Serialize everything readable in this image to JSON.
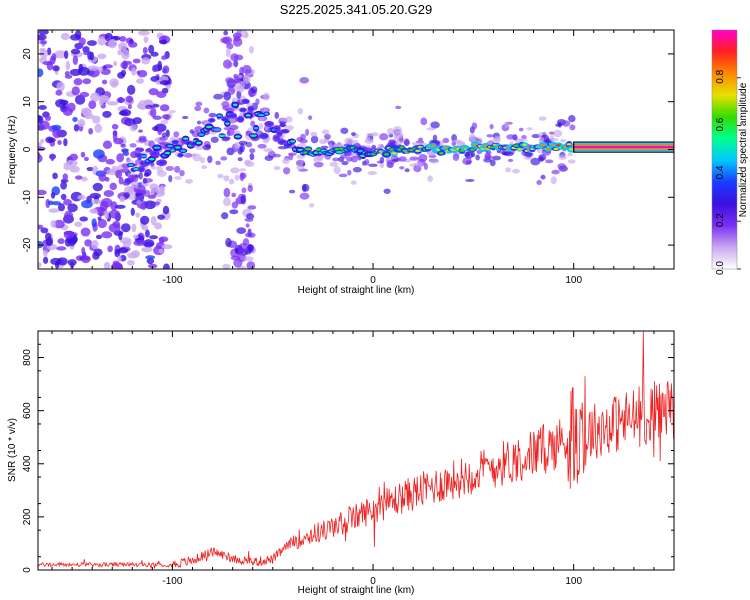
{
  "title": "S225.2025.341.05.20.G29",
  "chart_data": [
    {
      "type": "heatmap",
      "xlabel": "Height of straight line (km)",
      "ylabel": "Frequency (Hz)",
      "xlim": [
        -167,
        150
      ],
      "ylim": [
        -25,
        25
      ],
      "xticks": [
        -100,
        0,
        100
      ],
      "yticks": [
        -20,
        -10,
        0,
        10,
        20
      ],
      "ridge": {
        "x": [
          -120,
          -110,
          -100,
          -90,
          -80,
          -70,
          -60,
          -50,
          -40,
          -30,
          -20,
          -10,
          0,
          10,
          20,
          40,
          60,
          80,
          100,
          150
        ],
        "freq": [
          -4,
          -2,
          0,
          2,
          5,
          6,
          6,
          4,
          0,
          -1,
          0,
          0,
          -1,
          0,
          0,
          0,
          0.5,
          0.5,
          0.5,
          0.5
        ]
      },
      "colorbar": {
        "label": "Normalized spectral amplitude",
        "range": [
          0,
          1
        ],
        "ticks": [
          "0.0",
          "0.2",
          "0.4",
          "0.6",
          "0.8"
        ],
        "colors": [
          "#ffffff",
          "#c9a8f0",
          "#7b2ff2",
          "#3b10e0",
          "#1a3cff",
          "#00c8ff",
          "#00ff90",
          "#33dd00",
          "#e8e000",
          "#ff8800",
          "#ff2020",
          "#ff00cc"
        ]
      }
    },
    {
      "type": "line",
      "xlabel": "Height of straight line (km)",
      "ylabel": "SNR (10 * v/v)",
      "xlim": [
        -167,
        150
      ],
      "ylim": [
        0,
        900
      ],
      "xticks": [
        -100,
        0,
        100
      ],
      "yticks": [
        0,
        200,
        400,
        600,
        800
      ],
      "series": [
        {
          "name": "SNR",
          "color": "#ee2222",
          "trend": {
            "x": [
              -167,
              -100,
              -90,
              -80,
              -70,
              -60,
              -50,
              -40,
              -20,
              0,
              20,
              40,
              60,
              80,
              100,
              120,
              150
            ],
            "y": [
              20,
              20,
              35,
              70,
              45,
              30,
              40,
              110,
              160,
              230,
              290,
              340,
              390,
              440,
              500,
              550,
              620
            ]
          }
        }
      ]
    }
  ]
}
